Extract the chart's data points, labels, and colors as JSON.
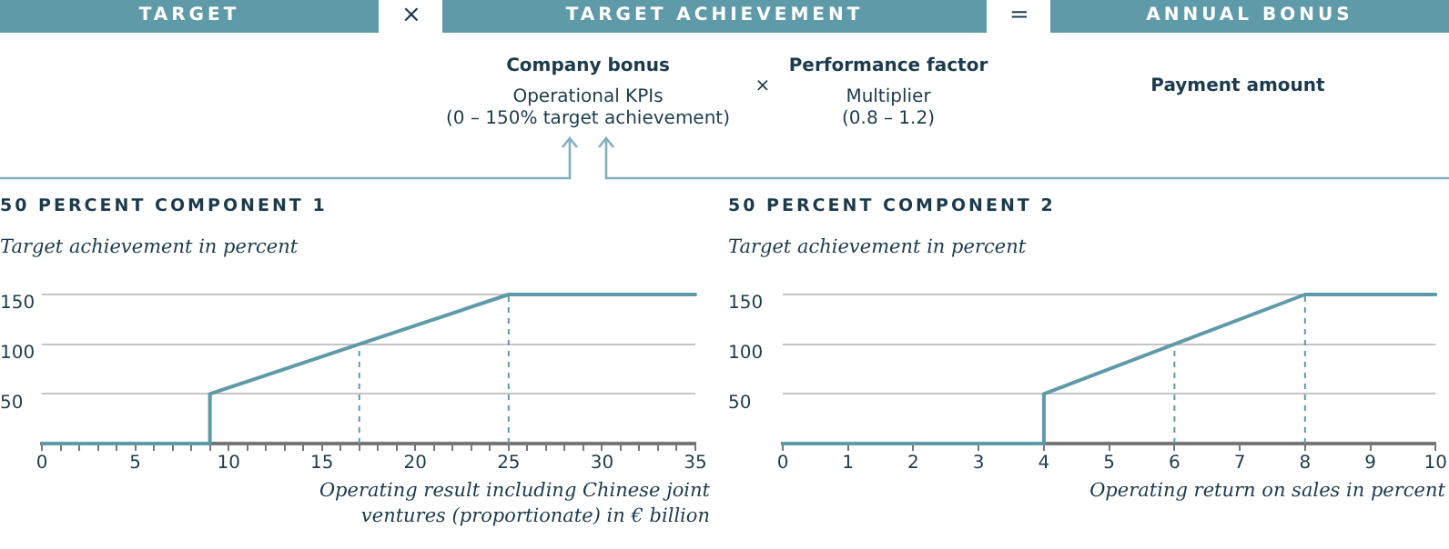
{
  "chart_data": [
    {
      "type": "other",
      "annotations": [
        "TARGET",
        "×",
        "TARGET ACHIEVEMENT",
        "=",
        "ANNUAL BONUS",
        "Company bonus",
        "Operational KPIs",
        "(0 – 150% target achievement)",
        "×",
        "Performance factor",
        "Multiplier",
        "(0.8 – 1.2)",
        "Payment amount"
      ]
    },
    {
      "type": "line",
      "title": "50 PERCENT COMPONENT 1",
      "ylabel": "Target achievement in percent",
      "xlabel": "Operating result including Chinese joint ventures (proportionate) in € billion",
      "x": [
        0,
        9,
        9,
        17,
        25,
        35
      ],
      "values": [
        0,
        0,
        50,
        100,
        150,
        150
      ],
      "color": "#5f9aa8",
      "xlim": [
        0,
        35
      ],
      "ylim": [
        0,
        150
      ],
      "yticks": [
        50,
        100,
        150
      ],
      "xticks": [
        0,
        {
          "value": 1,
          "label": null
        },
        {
          "value": 2,
          "label": null
        },
        {
          "value": 3,
          "label": null
        },
        {
          "value": 4,
          "label": null
        },
        5,
        {
          "value": 6,
          "label": null
        },
        {
          "value": 7,
          "label": null
        },
        {
          "value": 8,
          "label": null
        },
        {
          "value": 9,
          "label": null
        },
        10,
        {
          "value": 11,
          "label": null
        },
        {
          "value": 12,
          "label": null
        },
        {
          "value": 13,
          "label": null
        },
        {
          "value": 14,
          "label": null
        },
        15,
        {
          "value": 16,
          "label": null
        },
        {
          "value": 17,
          "label": null
        },
        {
          "value": 18,
          "label": null
        },
        {
          "value": 19,
          "label": null
        },
        20,
        {
          "value": 21,
          "label": null
        },
        {
          "value": 22,
          "label": null
        },
        {
          "value": 23,
          "label": null
        },
        {
          "value": 24,
          "label": null
        },
        25,
        {
          "value": 26,
          "label": null
        },
        {
          "value": 27,
          "label": null
        },
        {
          "value": 28,
          "label": null
        },
        {
          "value": 29,
          "label": null
        },
        30,
        {
          "value": 31,
          "label": null
        },
        {
          "value": 32,
          "label": null
        },
        {
          "value": 33,
          "label": null
        },
        {
          "value": 34,
          "label": null
        },
        35
      ],
      "grid": "y",
      "marker": "none",
      "line_style": "solid",
      "ref_lines": [
        {
          "axis": "x",
          "value": 17,
          "color": "#5f9aa8",
          "line_style": "dashed"
        },
        {
          "axis": "x",
          "value": 25,
          "color": "#5f9aa8",
          "line_style": "dashed"
        }
      ]
    },
    {
      "type": "line",
      "title": "50 PERCENT COMPONENT 2",
      "ylabel": "Target achievement in percent",
      "xlabel": "Operating return on sales in percent",
      "x": [
        0,
        4,
        4,
        6,
        8,
        10
      ],
      "values": [
        0,
        0,
        50,
        100,
        150,
        150
      ],
      "color": "#5f9aa8",
      "xlim": [
        0,
        10
      ],
      "ylim": [
        0,
        150
      ],
      "yticks": [
        50,
        100,
        150
      ],
      "xticks": [
        0,
        1,
        2,
        3,
        4,
        5,
        6,
        7,
        8,
        9,
        10
      ],
      "grid": "y",
      "marker": "none",
      "line_style": "solid",
      "ref_lines": [
        {
          "axis": "x",
          "value": 6,
          "color": "#5f9aa8",
          "line_style": "dashed"
        },
        {
          "axis": "x",
          "value": 8,
          "color": "#5f9aa8",
          "line_style": "dashed"
        }
      ]
    }
  ]
}
